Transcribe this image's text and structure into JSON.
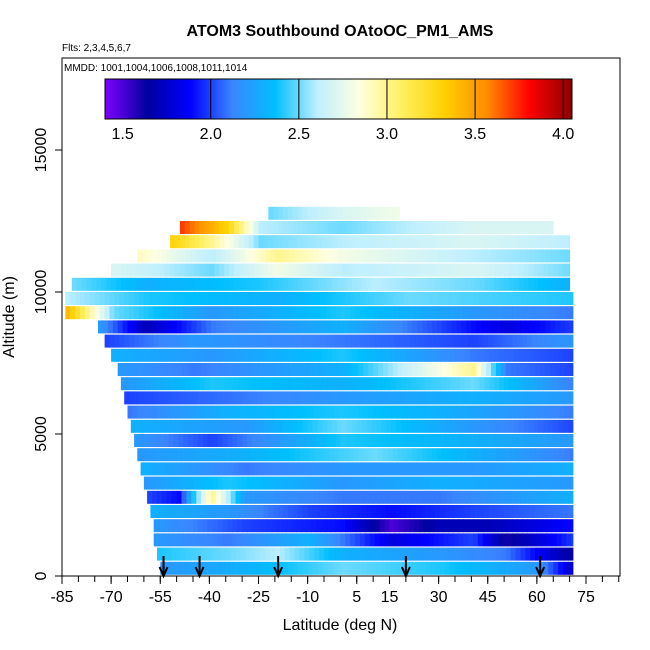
{
  "chart_data": {
    "type": "heatmap",
    "title": "ATOM3 Southbound OAtoOC_PM1_AMS",
    "flights_label": "Flts: 2,3,4,5,6,7",
    "mmdd_label": "MMDD: 1001,1004,1006,1008,1011,1014",
    "xlabel": "Latitude (deg N)",
    "ylabel": "Altitude (m)",
    "xlim": [
      -85,
      90
    ],
    "ylim": [
      0,
      17500
    ],
    "x_ticks": [
      -85,
      -70,
      -55,
      -40,
      -25,
      -10,
      5,
      15,
      30,
      45,
      60,
      75
    ],
    "x_tick_labels": [
      "-85",
      "-70",
      "-55",
      "-40",
      "-25",
      "-10",
      "5",
      "15",
      "30",
      "45",
      "60",
      "75"
    ],
    "y_ticks": [
      0,
      5000,
      10000,
      15000
    ],
    "y_tick_labels": [
      "0",
      "5000",
      "10000",
      "15000"
    ],
    "colorbar": {
      "range": [
        1.4,
        4.05
      ],
      "ticks": [
        1.5,
        2.0,
        2.5,
        3.0,
        3.5,
        4.0
      ],
      "tick_labels": [
        "1.5",
        "2.0",
        "2.5",
        "3.0",
        "3.5",
        "4.0"
      ],
      "colors": [
        "#7f00ff",
        "#0000a0",
        "#0000ff",
        "#3a86ff",
        "#00bfff",
        "#bfefff",
        "#ffffe0",
        "#fff060",
        "#ffd000",
        "#ff8c00",
        "#ff0000",
        "#8b0000"
      ]
    },
    "flight_track_arrows_lat": [
      -54,
      -43,
      -19,
      20,
      61
    ],
    "altitude_bands": [
      {
        "alt": 250,
        "lat": [
          -55,
          71
        ],
        "values": [
          [
            -55,
            2.2
          ],
          [
            -30,
            2.3
          ],
          [
            0,
            2.5
          ],
          [
            30,
            2.4
          ],
          [
            60,
            2.2
          ],
          [
            71,
            1.7
          ]
        ]
      },
      {
        "alt": 750,
        "lat": [
          -56,
          71
        ],
        "values": [
          [
            -56,
            2.4
          ],
          [
            -35,
            2.5
          ],
          [
            -20,
            2.6
          ],
          [
            0,
            2.3
          ],
          [
            30,
            2.2
          ],
          [
            50,
            2.1
          ],
          [
            71,
            1.6
          ]
        ]
      },
      {
        "alt": 1250,
        "lat": [
          -57,
          71
        ],
        "values": [
          [
            -57,
            2.2
          ],
          [
            -35,
            2.1
          ],
          [
            -10,
            2.3
          ],
          [
            15,
            1.8
          ],
          [
            40,
            2.0
          ],
          [
            50,
            1.6
          ],
          [
            71,
            2.0
          ]
        ]
      },
      {
        "alt": 1750,
        "lat": [
          -57,
          71
        ],
        "values": [
          [
            -57,
            2.2
          ],
          [
            -30,
            2.0
          ],
          [
            0,
            1.9
          ],
          [
            15,
            1.5
          ],
          [
            30,
            1.7
          ],
          [
            45,
            1.7
          ],
          [
            71,
            1.9
          ]
        ]
      },
      {
        "alt": 2250,
        "lat": [
          -58,
          71
        ],
        "values": [
          [
            -58,
            2.3
          ],
          [
            -35,
            2.2
          ],
          [
            -10,
            2.0
          ],
          [
            15,
            1.9
          ],
          [
            40,
            2.0
          ],
          [
            71,
            2.1
          ]
        ]
      },
      {
        "alt": 2750,
        "lat": [
          -59,
          71
        ],
        "values": [
          [
            -59,
            2.0
          ],
          [
            -50,
            1.9
          ],
          [
            -40,
            3.0
          ],
          [
            -30,
            2.2
          ],
          [
            0,
            2.1
          ],
          [
            30,
            2.1
          ],
          [
            71,
            2.3
          ]
        ]
      },
      {
        "alt": 3250,
        "lat": [
          -60,
          71
        ],
        "values": [
          [
            -60,
            2.2
          ],
          [
            -35,
            2.4
          ],
          [
            0,
            2.2
          ],
          [
            30,
            2.3
          ],
          [
            71,
            2.2
          ]
        ]
      },
      {
        "alt": 3750,
        "lat": [
          -61,
          71
        ],
        "values": [
          [
            -61,
            2.3
          ],
          [
            -30,
            2.1
          ],
          [
            0,
            2.2
          ],
          [
            40,
            2.2
          ],
          [
            71,
            2.3
          ]
        ]
      },
      {
        "alt": 4250,
        "lat": [
          -62,
          71
        ],
        "values": [
          [
            -62,
            2.2
          ],
          [
            -30,
            2.3
          ],
          [
            10,
            2.5
          ],
          [
            40,
            2.3
          ],
          [
            71,
            2.1
          ]
        ]
      },
      {
        "alt": 4750,
        "lat": [
          -63,
          71
        ],
        "values": [
          [
            -63,
            2.2
          ],
          [
            -40,
            2.0
          ],
          [
            0,
            2.4
          ],
          [
            40,
            2.3
          ],
          [
            71,
            2.2
          ]
        ]
      },
      {
        "alt": 5250,
        "lat": [
          -64,
          71
        ],
        "values": [
          [
            -64,
            2.3
          ],
          [
            -30,
            2.2
          ],
          [
            0,
            2.5
          ],
          [
            40,
            2.2
          ],
          [
            71,
            2.0
          ]
        ]
      },
      {
        "alt": 5750,
        "lat": [
          -65,
          71
        ],
        "values": [
          [
            -65,
            2.1
          ],
          [
            -35,
            2.3
          ],
          [
            0,
            2.4
          ],
          [
            30,
            2.3
          ],
          [
            71,
            2.1
          ]
        ]
      },
      {
        "alt": 6250,
        "lat": [
          -66,
          71
        ],
        "values": [
          [
            -66,
            2.0
          ],
          [
            -30,
            2.1
          ],
          [
            0,
            2.2
          ],
          [
            40,
            2.3
          ],
          [
            71,
            2.2
          ]
        ]
      },
      {
        "alt": 6750,
        "lat": [
          -67,
          71
        ],
        "values": [
          [
            -67,
            2.2
          ],
          [
            -40,
            2.4
          ],
          [
            0,
            2.3
          ],
          [
            40,
            2.5
          ],
          [
            71,
            2.1
          ]
        ]
      },
      {
        "alt": 7250,
        "lat": [
          -68,
          71
        ],
        "values": [
          [
            -68,
            2.2
          ],
          [
            -45,
            2.1
          ],
          [
            0,
            2.3
          ],
          [
            40,
            3.0
          ],
          [
            50,
            2.1
          ],
          [
            71,
            2.0
          ]
        ]
      },
      {
        "alt": 7750,
        "lat": [
          -70,
          71
        ],
        "values": [
          [
            -70,
            2.3
          ],
          [
            -40,
            2.2
          ],
          [
            0,
            2.4
          ],
          [
            40,
            2.1
          ],
          [
            71,
            2.0
          ]
        ]
      },
      {
        "alt": 8250,
        "lat": [
          -72,
          71
        ],
        "values": [
          [
            -72,
            2.0
          ],
          [
            -45,
            2.2
          ],
          [
            0,
            2.1
          ],
          [
            40,
            2.0
          ],
          [
            71,
            2.2
          ]
        ]
      },
      {
        "alt": 8750,
        "lat": [
          -74,
          71
        ],
        "values": [
          [
            -74,
            2.2
          ],
          [
            -60,
            1.7
          ],
          [
            -40,
            2.1
          ],
          [
            0,
            2.3
          ],
          [
            50,
            1.8
          ],
          [
            71,
            2.0
          ]
        ]
      },
      {
        "alt": 9250,
        "lat": [
          -84,
          71
        ],
        "values": [
          [
            -84,
            3.4
          ],
          [
            -70,
            2.5
          ],
          [
            -40,
            2.2
          ],
          [
            0,
            2.4
          ],
          [
            40,
            2.2
          ],
          [
            71,
            2.1
          ]
        ]
      },
      {
        "alt": 9750,
        "lat": [
          -84,
          71
        ],
        "values": [
          [
            -84,
            2.6
          ],
          [
            -60,
            2.4
          ],
          [
            -20,
            2.3
          ],
          [
            20,
            2.5
          ],
          [
            71,
            2.4
          ]
        ]
      },
      {
        "alt": 10250,
        "lat": [
          -82,
          70
        ],
        "values": [
          [
            -82,
            2.5
          ],
          [
            -60,
            2.3
          ],
          [
            -25,
            2.4
          ],
          [
            10,
            2.6
          ],
          [
            40,
            2.5
          ],
          [
            70,
            2.3
          ]
        ]
      },
      {
        "alt": 10750,
        "lat": [
          -70,
          70
        ],
        "values": [
          [
            -70,
            2.7
          ],
          [
            -40,
            2.5
          ],
          [
            -20,
            2.8
          ],
          [
            0,
            2.6
          ],
          [
            40,
            2.7
          ],
          [
            70,
            2.5
          ]
        ]
      },
      {
        "alt": 11250,
        "lat": [
          -62,
          70
        ],
        "values": [
          [
            -62,
            2.9
          ],
          [
            -40,
            2.6
          ],
          [
            -20,
            3.0
          ],
          [
            0,
            2.8
          ],
          [
            40,
            2.6
          ],
          [
            70,
            2.5
          ]
        ]
      },
      {
        "alt": 11750,
        "lat": [
          -52,
          70
        ],
        "values": [
          [
            -52,
            3.3
          ],
          [
            -40,
            3.0
          ],
          [
            -25,
            2.5
          ],
          [
            0,
            2.6
          ],
          [
            40,
            2.7
          ],
          [
            70,
            2.6
          ]
        ]
      },
      {
        "alt": 12250,
        "lat": [
          -49,
          65
        ],
        "values": [
          [
            -49,
            3.7
          ],
          [
            -35,
            3.3
          ],
          [
            -25,
            2.6
          ],
          [
            0,
            2.5
          ],
          [
            40,
            2.7
          ],
          [
            65,
            2.7
          ]
        ]
      },
      {
        "alt": 12750,
        "lat": [
          -22,
          18
        ],
        "values": [
          [
            -22,
            2.5
          ],
          [
            0,
            2.7
          ],
          [
            18,
            2.8
          ]
        ]
      }
    ],
    "grid": false,
    "legend": "colorbar-top-inside"
  }
}
